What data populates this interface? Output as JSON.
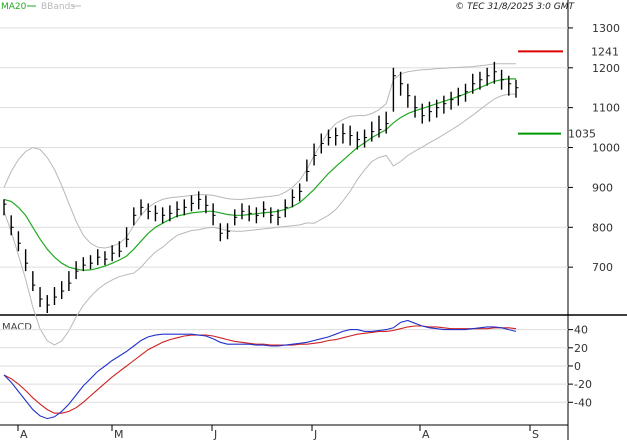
{
  "header": {
    "legend_ma": "MA20",
    "legend_bbands": "BBands",
    "source": "© TEC 31/8/2025 3:0 GMT"
  },
  "chart_data": {
    "type": "line",
    "x_ticks": [
      "A",
      "M",
      "J",
      "J",
      "A",
      "S"
    ],
    "price": {
      "ylim": [
        580,
        1370
      ],
      "yticks": [
        {
          "value": 1300,
          "label": "1300"
        },
        {
          "value": 1200,
          "label": "1200"
        },
        {
          "value": 1100,
          "label": "1100"
        },
        {
          "value": 1000,
          "label": "1000"
        },
        {
          "value": 900,
          "label": "900"
        },
        {
          "value": 800,
          "label": "800"
        },
        {
          "value": 700,
          "label": "700"
        }
      ],
      "resistance": {
        "value": 1241,
        "label": "1241",
        "color": "#dd0000"
      },
      "support": {
        "value": 1035,
        "label": "1035",
        "color": "#009900"
      },
      "close": [
        858,
        800,
        760,
        710,
        655,
        620,
        605,
        625,
        640,
        660,
        690,
        705,
        710,
        725,
        720,
        735,
        740,
        770,
        830,
        850,
        840,
        835,
        830,
        835,
        845,
        850,
        860,
        870,
        855,
        830,
        785,
        790,
        825,
        840,
        835,
        830,
        845,
        830,
        825,
        850,
        875,
        890,
        940,
        980,
        1010,
        1025,
        1030,
        1035,
        1030,
        1020,
        1025,
        1040,
        1045,
        1060,
        1180,
        1160,
        1130,
        1100,
        1080,
        1090,
        1100,
        1110,
        1120,
        1130,
        1140,
        1160,
        1170,
        1180,
        1190,
        1170,
        1160,
        1150
      ],
      "high": [
        870,
        830,
        790,
        745,
        690,
        650,
        630,
        650,
        665,
        690,
        715,
        725,
        730,
        745,
        740,
        755,
        765,
        800,
        850,
        870,
        860,
        855,
        850,
        855,
        865,
        870,
        880,
        890,
        880,
        860,
        810,
        810,
        845,
        860,
        855,
        850,
        865,
        850,
        845,
        870,
        895,
        910,
        970,
        1010,
        1035,
        1045,
        1050,
        1060,
        1055,
        1040,
        1045,
        1065,
        1080,
        1090,
        1200,
        1190,
        1160,
        1130,
        1110,
        1115,
        1120,
        1130,
        1140,
        1150,
        1160,
        1185,
        1190,
        1200,
        1215,
        1195,
        1180,
        1170
      ],
      "low": [
        830,
        780,
        740,
        690,
        640,
        600,
        585,
        605,
        620,
        640,
        670,
        690,
        695,
        705,
        705,
        715,
        725,
        750,
        805,
        830,
        820,
        815,
        810,
        815,
        825,
        830,
        840,
        845,
        835,
        805,
        765,
        770,
        805,
        820,
        815,
        810,
        825,
        810,
        805,
        825,
        850,
        865,
        915,
        955,
        985,
        1005,
        1005,
        1010,
        1005,
        995,
        1000,
        1015,
        1025,
        1035,
        1090,
        1130,
        1100,
        1075,
        1060,
        1065,
        1075,
        1085,
        1095,
        1105,
        1115,
        1135,
        1145,
        1155,
        1160,
        1145,
        1130,
        1125
      ],
      "ma20": [
        870,
        865,
        850,
        830,
        800,
        770,
        745,
        725,
        710,
        700,
        695,
        692,
        693,
        697,
        703,
        710,
        718,
        728,
        745,
        765,
        785,
        800,
        810,
        820,
        828,
        832,
        836,
        838,
        840,
        840,
        836,
        832,
        830,
        830,
        832,
        834,
        836,
        838,
        840,
        845,
        852,
        862,
        878,
        895,
        915,
        935,
        952,
        968,
        984,
        1000,
        1012,
        1025,
        1035,
        1045,
        1062,
        1075,
        1085,
        1092,
        1098,
        1104,
        1110,
        1116,
        1122,
        1128,
        1135,
        1142,
        1150,
        1158,
        1166,
        1170,
        1172,
        1172
      ],
      "bb_upper": [
        900,
        940,
        970,
        990,
        1000,
        995,
        975,
        945,
        905,
        860,
        815,
        780,
        760,
        750,
        748,
        752,
        760,
        775,
        805,
        830,
        850,
        862,
        870,
        874,
        876,
        878,
        880,
        882,
        882,
        880,
        876,
        872,
        870,
        870,
        872,
        874,
        876,
        878,
        880,
        888,
        900,
        918,
        945,
        980,
        1010,
        1040,
        1060,
        1070,
        1078,
        1080,
        1080,
        1085,
        1095,
        1110,
        1170,
        1185,
        1190,
        1193,
        1195,
        1196,
        1198,
        1199,
        1200,
        1201,
        1202,
        1203,
        1205,
        1207,
        1210,
        1210,
        1210,
        1210
      ],
      "bb_lower": [
        840,
        790,
        730,
        670,
        600,
        545,
        515,
        505,
        515,
        540,
        575,
        604,
        626,
        644,
        658,
        668,
        676,
        681,
        685,
        700,
        720,
        738,
        750,
        766,
        780,
        786,
        792,
        794,
        798,
        800,
        796,
        792,
        790,
        790,
        792,
        794,
        796,
        798,
        800,
        802,
        804,
        806,
        811,
        810,
        820,
        830,
        844,
        866,
        890,
        920,
        944,
        965,
        975,
        980,
        954,
        965,
        980,
        991,
        1001,
        1012,
        1022,
        1033,
        1044,
        1055,
        1068,
        1081,
        1095,
        1109,
        1122,
        1130,
        1134,
        1134
      ]
    },
    "macd": {
      "label": "MACD",
      "ylim": [
        -65,
        55
      ],
      "yticks": [
        {
          "value": 40,
          "label": "40"
        },
        {
          "value": 20,
          "label": "20"
        },
        {
          "value": 0,
          "label": "0"
        },
        {
          "value": -20,
          "label": "-20"
        },
        {
          "value": -40,
          "label": "-40"
        }
      ],
      "macd_line": [
        -10,
        -18,
        -28,
        -38,
        -48,
        -55,
        -58,
        -56,
        -50,
        -42,
        -32,
        -22,
        -14,
        -6,
        0,
        6,
        11,
        16,
        22,
        28,
        32,
        34,
        35,
        35,
        35,
        35,
        35,
        34,
        33,
        30,
        26,
        24,
        24,
        24,
        24,
        23,
        23,
        22,
        22,
        23,
        24,
        25,
        26,
        28,
        30,
        32,
        35,
        38,
        40,
        40,
        38,
        38,
        39,
        40,
        42,
        48,
        50,
        47,
        44,
        42,
        41,
        40,
        40,
        40,
        40,
        41,
        42,
        43,
        43,
        42,
        40,
        38
      ],
      "signal_line": [
        -10,
        -14,
        -20,
        -27,
        -35,
        -42,
        -48,
        -52,
        -52,
        -50,
        -46,
        -40,
        -33,
        -26,
        -19,
        -12,
        -6,
        0,
        6,
        12,
        18,
        22,
        26,
        29,
        31,
        33,
        34,
        34,
        34,
        33,
        31,
        29,
        27,
        26,
        25,
        24,
        24,
        23,
        23,
        23,
        23,
        24,
        24,
        25,
        26,
        28,
        29,
        31,
        33,
        35,
        36,
        37,
        38,
        38,
        39,
        41,
        43,
        44,
        44,
        43,
        43,
        42,
        41,
        41,
        41,
        41,
        41,
        41,
        42,
        42,
        42,
        41
      ],
      "macd_color": "#2233cc",
      "signal_color": "#cc2222"
    },
    "colors": {
      "ma20": "#22aa22",
      "bbands": "#b8b8b8",
      "bars": "#000000",
      "grid": "#dddddd"
    }
  }
}
